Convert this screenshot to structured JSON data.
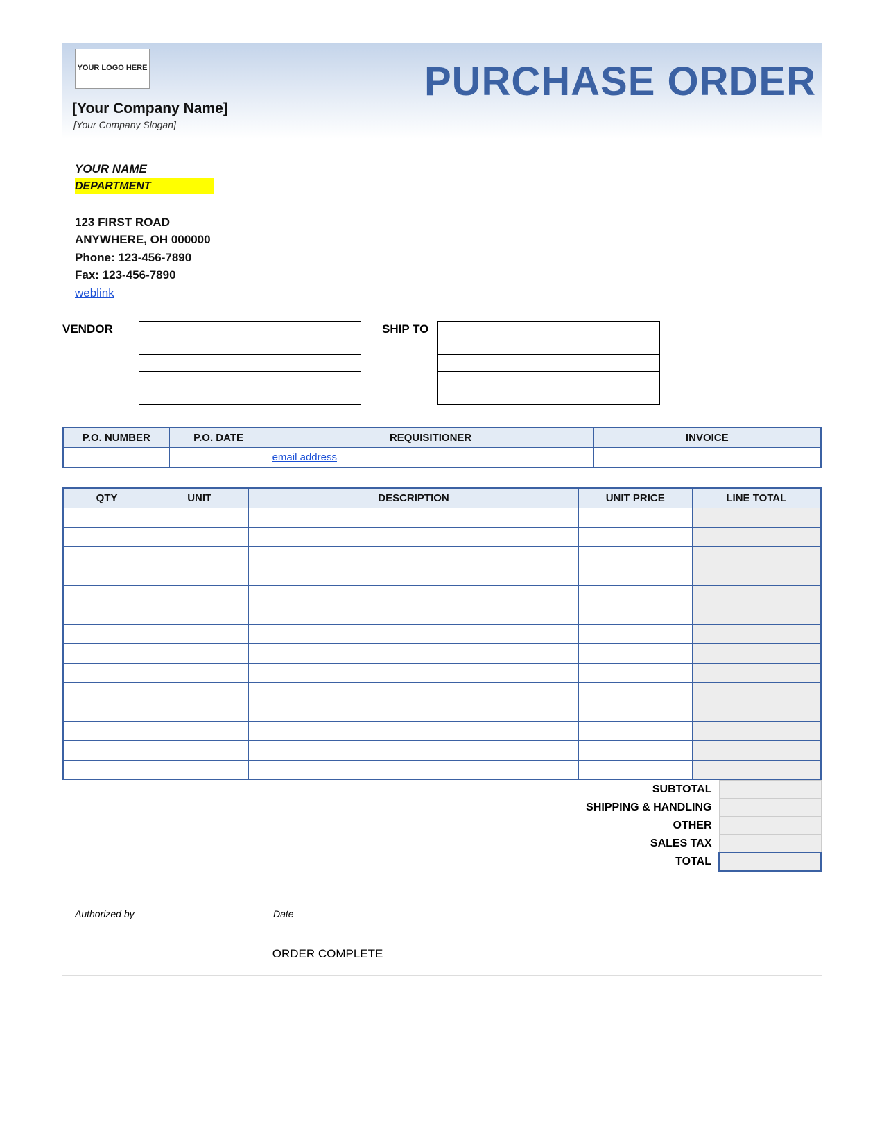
{
  "colors": {
    "accent": "#3b61a3",
    "header_bg_top": "#c4d4ea",
    "header_bg_bottom": "#ffffff",
    "highlight": "#ffff00",
    "link": "#1a4fd6",
    "table_header_bg": "#e3ebf5",
    "shaded_cell": "#ededed"
  },
  "logo_placeholder": "YOUR LOGO HERE",
  "title": "PURCHASE ORDER",
  "company": {
    "name": "[Your Company Name]",
    "slogan": "[Your Company Slogan]"
  },
  "contact": {
    "your_name": "YOUR NAME",
    "department": "DEPARTMENT",
    "street": "123 FIRST ROAD",
    "city_line": "ANYWHERE, OH 000000",
    "phone_label": "Phone: 123-456-7890",
    "fax_label": "Fax: 123-456-7890",
    "weblink_text": "weblink"
  },
  "vendor_label": "VENDOR",
  "ship_to_label": "SHIP TO",
  "vendor_rows": [
    "",
    "",
    "",
    "",
    ""
  ],
  "ship_to_rows": [
    "",
    "",
    "",
    "",
    ""
  ],
  "po_table": {
    "columns": [
      "P.O. NUMBER",
      "P.O. DATE",
      "REQUISITIONER",
      "INVOICE"
    ],
    "col_widths_pct": [
      14,
      13,
      43,
      30
    ],
    "row": {
      "po_number": "",
      "po_date": "",
      "requisitioner_link": "email address",
      "invoice": ""
    }
  },
  "items_table": {
    "columns": [
      "QTY",
      "UNIT",
      "DESCRIPTION",
      "UNIT PRICE",
      "LINE TOTAL"
    ],
    "col_widths_pct": [
      11.5,
      13,
      43.5,
      15,
      17
    ],
    "row_count": 14
  },
  "totals": {
    "labels": [
      "SUBTOTAL",
      "SHIPPING & HANDLING",
      "OTHER",
      "SALES TAX",
      "TOTAL"
    ],
    "values": [
      "",
      "",
      "",
      "",
      ""
    ]
  },
  "signature": {
    "authorized_by_label": "Authorized by",
    "date_label": "Date"
  },
  "order_complete_label": "ORDER COMPLETE"
}
